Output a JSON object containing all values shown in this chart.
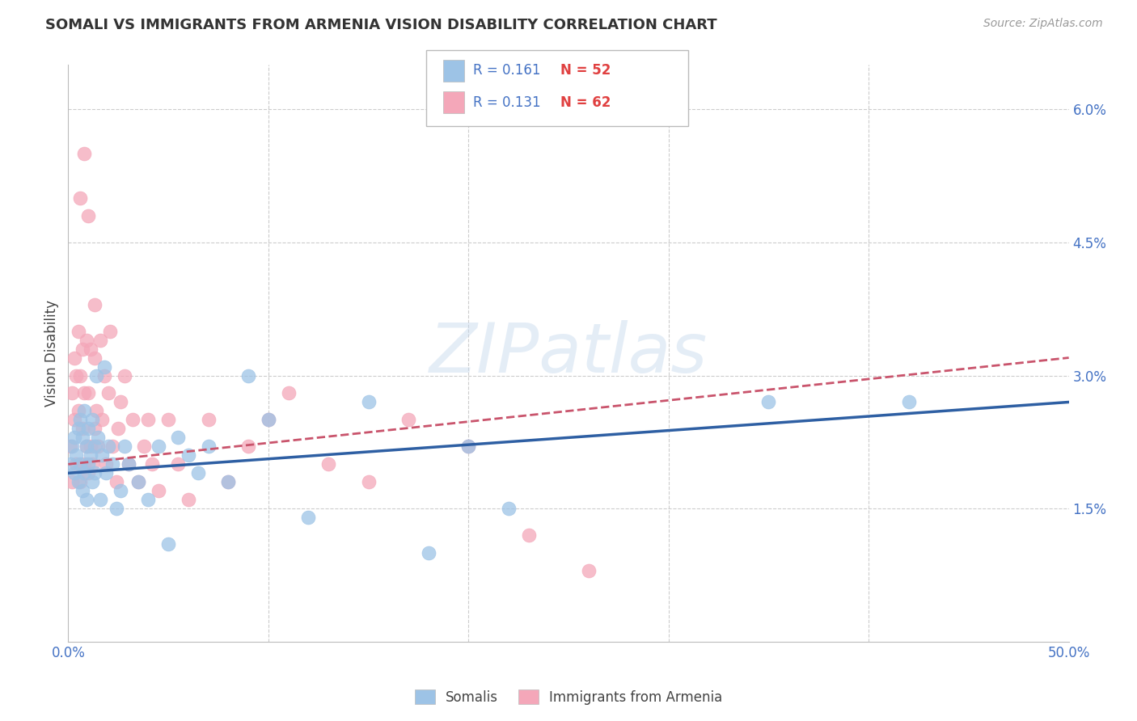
{
  "title": "SOMALI VS IMMIGRANTS FROM ARMENIA VISION DISABILITY CORRELATION CHART",
  "source": "Source: ZipAtlas.com",
  "ylabel": "Vision Disability",
  "xlim": [
    0.0,
    0.5
  ],
  "ylim": [
    0.0,
    0.065
  ],
  "xticks": [
    0.0,
    0.1,
    0.2,
    0.3,
    0.4,
    0.5
  ],
  "xticklabels": [
    "0.0%",
    "",
    "",
    "",
    "",
    "50.0%"
  ],
  "yticks": [
    0.0,
    0.015,
    0.03,
    0.045,
    0.06
  ],
  "yticklabels": [
    "",
    "1.5%",
    "3.0%",
    "4.5%",
    "6.0%"
  ],
  "somali_color": "#9dc3e6",
  "armenia_color": "#f4a7b9",
  "somali_line_color": "#2e5fa3",
  "armenia_line_color": "#c9546c",
  "somali_R": 0.161,
  "somali_N": 52,
  "armenia_R": 0.131,
  "armenia_N": 62,
  "legend_label_1": "Somalis",
  "legend_label_2": "Immigrants from Armenia",
  "somali_x": [
    0.001,
    0.002,
    0.003,
    0.003,
    0.004,
    0.005,
    0.005,
    0.006,
    0.006,
    0.007,
    0.007,
    0.008,
    0.008,
    0.009,
    0.009,
    0.01,
    0.01,
    0.011,
    0.012,
    0.012,
    0.013,
    0.013,
    0.014,
    0.015,
    0.016,
    0.017,
    0.018,
    0.019,
    0.02,
    0.022,
    0.024,
    0.026,
    0.028,
    0.03,
    0.035,
    0.04,
    0.045,
    0.05,
    0.055,
    0.06,
    0.065,
    0.07,
    0.08,
    0.09,
    0.1,
    0.12,
    0.15,
    0.18,
    0.2,
    0.22,
    0.35,
    0.42
  ],
  "somali_y": [
    0.02,
    0.022,
    0.019,
    0.023,
    0.021,
    0.018,
    0.024,
    0.02,
    0.025,
    0.017,
    0.023,
    0.019,
    0.026,
    0.016,
    0.022,
    0.02,
    0.024,
    0.021,
    0.018,
    0.025,
    0.022,
    0.019,
    0.03,
    0.023,
    0.016,
    0.021,
    0.031,
    0.019,
    0.022,
    0.02,
    0.015,
    0.017,
    0.022,
    0.02,
    0.018,
    0.016,
    0.022,
    0.011,
    0.023,
    0.021,
    0.019,
    0.022,
    0.018,
    0.03,
    0.025,
    0.014,
    0.027,
    0.01,
    0.022,
    0.015,
    0.027,
    0.027
  ],
  "armenia_x": [
    0.001,
    0.002,
    0.002,
    0.003,
    0.003,
    0.004,
    0.004,
    0.005,
    0.005,
    0.006,
    0.006,
    0.007,
    0.007,
    0.008,
    0.008,
    0.009,
    0.009,
    0.01,
    0.01,
    0.011,
    0.011,
    0.012,
    0.013,
    0.013,
    0.014,
    0.015,
    0.016,
    0.017,
    0.018,
    0.019,
    0.02,
    0.021,
    0.022,
    0.024,
    0.025,
    0.026,
    0.028,
    0.03,
    0.032,
    0.035,
    0.038,
    0.04,
    0.042,
    0.045,
    0.05,
    0.055,
    0.06,
    0.07,
    0.08,
    0.09,
    0.1,
    0.11,
    0.13,
    0.15,
    0.17,
    0.2,
    0.23,
    0.26,
    0.01,
    0.013,
    0.008,
    0.006
  ],
  "armenia_y": [
    0.022,
    0.028,
    0.018,
    0.025,
    0.032,
    0.02,
    0.03,
    0.026,
    0.035,
    0.018,
    0.03,
    0.024,
    0.033,
    0.02,
    0.028,
    0.022,
    0.034,
    0.019,
    0.028,
    0.022,
    0.033,
    0.02,
    0.024,
    0.038,
    0.026,
    0.022,
    0.034,
    0.025,
    0.03,
    0.02,
    0.028,
    0.035,
    0.022,
    0.018,
    0.024,
    0.027,
    0.03,
    0.02,
    0.025,
    0.018,
    0.022,
    0.025,
    0.02,
    0.017,
    0.025,
    0.02,
    0.016,
    0.025,
    0.018,
    0.022,
    0.025,
    0.028,
    0.02,
    0.018,
    0.025,
    0.022,
    0.012,
    0.008,
    0.048,
    0.032,
    0.055,
    0.05
  ]
}
